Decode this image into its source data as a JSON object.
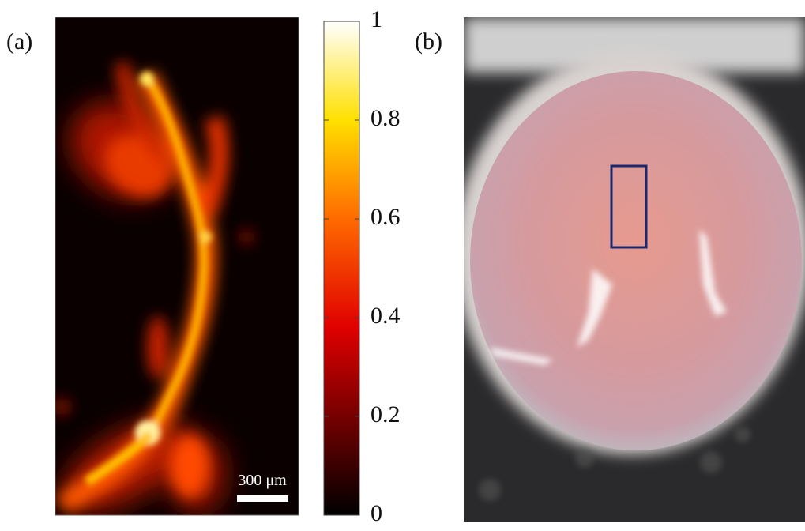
{
  "panels": [
    {
      "label": "(a)",
      "scale_bar": "300 μm"
    },
    {
      "label": "(b)"
    }
  ],
  "colorbar": {
    "ylim": [
      0,
      1
    ],
    "ticks": [
      0,
      0.2,
      0.4,
      0.6,
      0.8,
      1
    ]
  }
}
